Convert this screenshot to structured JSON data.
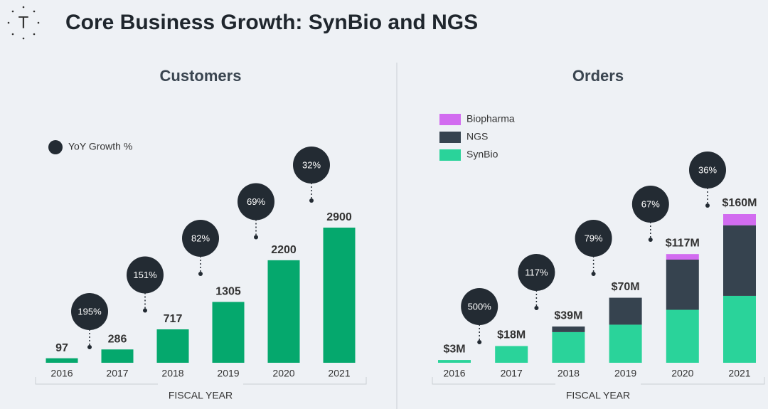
{
  "header": {
    "logo": "T",
    "title": "Core Business Growth: SynBio and NGS"
  },
  "chart_data": [
    {
      "type": "bar",
      "title": "Customers",
      "xlabel": "FISCAL YEAR",
      "categories": [
        "2016",
        "2017",
        "2018",
        "2019",
        "2020",
        "2021"
      ],
      "values": [
        97,
        286,
        717,
        1305,
        2200,
        2900
      ],
      "color": "#05a86d",
      "growth": {
        "name": "YoY Growth %",
        "color": "#232b33",
        "values": [
          null,
          195,
          151,
          82,
          69,
          32
        ],
        "value_labels": [
          null,
          "195%",
          "151%",
          "82%",
          "69%",
          "32%"
        ]
      },
      "legend": "upper left"
    },
    {
      "type": "stacked_bar",
      "title": "Orders",
      "xlabel": "FISCAL YEAR",
      "categories": [
        "2016",
        "2017",
        "2018",
        "2019",
        "2020",
        "2021"
      ],
      "series": [
        {
          "name": "SynBio",
          "color": "#2ad39a",
          "values": [
            3,
            18,
            33,
            41,
            57,
            72
          ]
        },
        {
          "name": "NGS",
          "color": "#36434f",
          "values": [
            0,
            0,
            6,
            29,
            54,
            76
          ]
        },
        {
          "name": "Biopharma",
          "color": "#d26cf0",
          "values": [
            0,
            0,
            0,
            0,
            6,
            12
          ]
        }
      ],
      "totals": {
        "values": [
          3,
          18,
          39,
          70,
          117,
          160
        ],
        "value_labels": [
          "$3M",
          "$18M",
          "$39M",
          "$70M",
          "$117M",
          "$160M"
        ]
      },
      "growth": {
        "name": "YoY Growth %",
        "color": "#232b33",
        "values": [
          null,
          500,
          117,
          79,
          67,
          36
        ],
        "value_labels": [
          null,
          "500%",
          "117%",
          "79%",
          "67%",
          "36%"
        ]
      },
      "legend": "upper left"
    }
  ]
}
